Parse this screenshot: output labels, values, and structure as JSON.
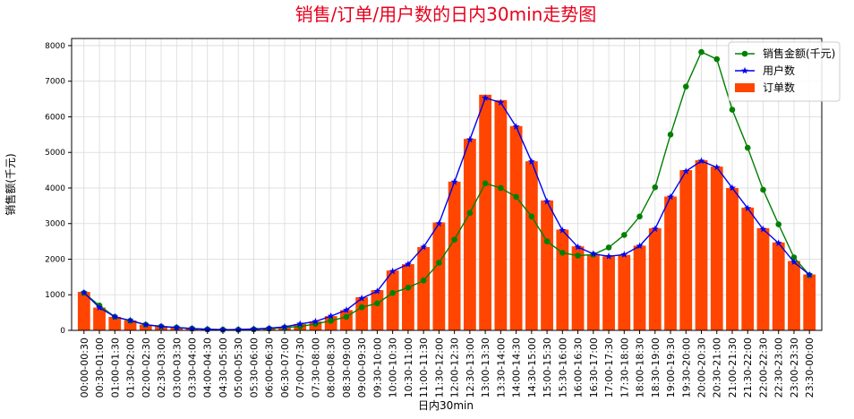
{
  "chart_data": {
    "type": "bar+line",
    "title": "销售/订单/用户数的日内30min走势图",
    "xlabel": "日内30min",
    "ylabel": "销售额(千元)",
    "ylim": [
      0,
      8200
    ],
    "yticks": [
      0,
      1000,
      2000,
      3000,
      4000,
      5000,
      6000,
      7000,
      8000
    ],
    "grid": true,
    "legend_position": "top-right",
    "categories": [
      "00:00-00:30",
      "00:30-01:00",
      "01:00-01:30",
      "01:30-02:00",
      "02:00-02:30",
      "02:30-03:00",
      "03:00-03:30",
      "03:30-04:00",
      "04:00-04:30",
      "04:30-05:00",
      "05:00-05:30",
      "05:30-06:00",
      "06:00-06:30",
      "06:30-07:00",
      "07:00-07:30",
      "07:30-08:00",
      "08:00-08:30",
      "08:30-09:00",
      "09:00-09:30",
      "09:30-10:00",
      "10:00-10:30",
      "10:30-11:00",
      "11:00-11:30",
      "11:30-12:00",
      "12:00-12:30",
      "12:30-13:00",
      "13:00-13:30",
      "13:30-14:00",
      "14:00-14:30",
      "14:30-15:00",
      "15:00-15:30",
      "15:30-16:00",
      "16:00-16:30",
      "16:30-17:00",
      "17:00-17:30",
      "17:30-18:00",
      "18:00-18:30",
      "18:30-19:00",
      "19:00-19:30",
      "19:30-20:00",
      "20:00-20:30",
      "20:30-21:00",
      "21:00-21:30",
      "21:30-22:00",
      "22:00-22:30",
      "22:30-23:00",
      "23:00-23:30",
      "23:30-00:00"
    ],
    "series": [
      {
        "name": "销售金额(千元)",
        "kind": "line",
        "color": "#008000",
        "marker": "circle",
        "values": [
          1050,
          700,
          380,
          270,
          160,
          110,
          80,
          50,
          30,
          20,
          20,
          30,
          50,
          80,
          110,
          180,
          270,
          380,
          650,
          760,
          1050,
          1200,
          1400,
          1900,
          2550,
          3300,
          4130,
          4000,
          3750,
          3200,
          2500,
          2180,
          2100,
          2130,
          2330,
          2680,
          3200,
          4020,
          5500,
          6850,
          7820,
          7620,
          6200,
          5130,
          3950,
          2980,
          2050,
          1550
        ]
      },
      {
        "name": "用户数",
        "kind": "line",
        "color": "#0000ee",
        "marker": "star",
        "values": [
          1060,
          640,
          380,
          280,
          160,
          110,
          80,
          50,
          30,
          20,
          25,
          40,
          60,
          100,
          180,
          250,
          400,
          570,
          900,
          1100,
          1660,
          1860,
          2340,
          3000,
          4170,
          5360,
          6530,
          6400,
          5720,
          4740,
          3620,
          2810,
          2340,
          2150,
          2080,
          2130,
          2370,
          2850,
          3750,
          4470,
          4760,
          4580,
          4000,
          3430,
          2840,
          2450,
          1920,
          1560
        ]
      },
      {
        "name": "订单数",
        "kind": "bar",
        "color": "#ff4500",
        "values": [
          1080,
          640,
          380,
          280,
          160,
          110,
          80,
          50,
          30,
          20,
          25,
          40,
          60,
          100,
          180,
          250,
          400,
          570,
          930,
          1130,
          1680,
          1860,
          2340,
          3030,
          4180,
          5380,
          6620,
          6470,
          5740,
          4750,
          3650,
          2830,
          2360,
          2140,
          2080,
          2120,
          2380,
          2870,
          3760,
          4500,
          4780,
          4600,
          4000,
          3450,
          2870,
          2470,
          1950,
          1570
        ]
      }
    ]
  }
}
